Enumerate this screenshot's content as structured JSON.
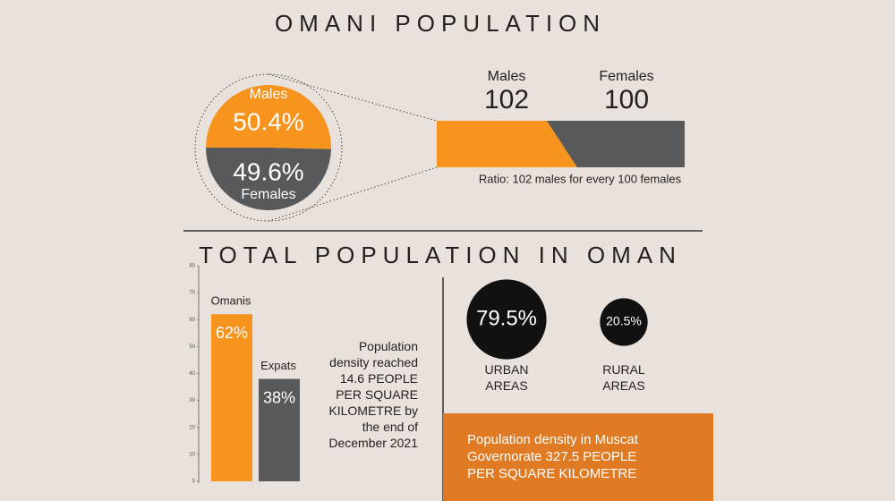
{
  "title": "OMANI POPULATION",
  "chart_data": [
    {
      "type": "pie",
      "categories": [
        "Males",
        "Females"
      ],
      "values": [
        50.4,
        49.6
      ],
      "value_labels": [
        "50.4%",
        "49.6%"
      ],
      "colors": [
        "#f7941d",
        "#58595b"
      ]
    },
    {
      "type": "bar",
      "stacked": true,
      "orientation": "horizontal",
      "categories": [
        "Males",
        "Females"
      ],
      "values": [
        102,
        100
      ],
      "colors": [
        "#f7941d",
        "#58595b"
      ],
      "note": "Ratio: 102 males for every 100 females"
    },
    {
      "type": "bar",
      "title": "TOTAL POPULATION IN OMAN",
      "categories": [
        "Omanis",
        "Expats"
      ],
      "values": [
        62,
        38
      ],
      "value_labels": [
        "62%",
        "38%"
      ],
      "colors": [
        "#f7941d",
        "#58595b"
      ],
      "ylim": [
        0,
        80
      ],
      "yticks": [
        0,
        10,
        20,
        30,
        40,
        50,
        60,
        70,
        80
      ]
    },
    {
      "type": "bubble",
      "categories": [
        "URBAN AREAS",
        "RURAL AREAS"
      ],
      "values": [
        79.5,
        20.5
      ],
      "value_labels": [
        "79.5%",
        "20.5%"
      ],
      "color": "#111111"
    }
  ],
  "density_note": "Population density reached 14.6 PEOPLE PER SQUARE KILOMETRE by the end of December 2021",
  "muscat_note": "Population density in Muscat Governorate 327.5 PEOPLE PER SQUARE KILOMETRE"
}
